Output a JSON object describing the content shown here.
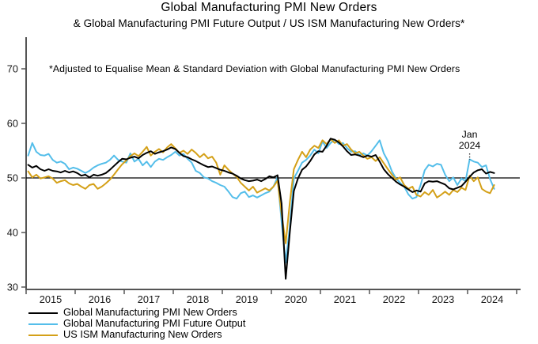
{
  "title": "Global Manufacturing PMI New Orders",
  "subtitle": "& Global Manufacturing PMI Future Output / US ISM Manufacturing New Orders*",
  "footnote": "*Adjusted to Equalise Mean & Standard Deviation with Global Manufacturing PMI New Orders",
  "annotation": {
    "line1": "Jan",
    "line2": "2024",
    "month_index": 108
  },
  "colors": {
    "axis": "#555555",
    "reference_line": "#000000",
    "text": "#1a1a1a"
  },
  "chart_data": {
    "type": "line",
    "frequency": "monthly",
    "x_start": "2015-01",
    "x_end": "2024-07",
    "x_tick_years": [
      "2015",
      "2016",
      "2017",
      "2018",
      "2019",
      "2020",
      "2021",
      "2022",
      "2023",
      "2024"
    ],
    "y_ticks": [
      30,
      40,
      50,
      60,
      70
    ],
    "ylim": [
      29.5,
      75
    ],
    "reference_line": 50,
    "grid": false,
    "legend_position": "bottom-left",
    "series": [
      {
        "name": "Global Manufacturing PMI New Orders",
        "color": "#000000",
        "values": [
          52.4,
          51.9,
          52.2,
          51.6,
          51.3,
          51.6,
          51.3,
          51.2,
          51.0,
          51.3,
          51.0,
          51.2,
          50.9,
          50.4,
          50.6,
          50.1,
          50.6,
          50.4,
          50.6,
          50.9,
          51.5,
          52.2,
          52.9,
          53.5,
          53.4,
          53.7,
          53.9,
          53.6,
          54.2,
          54.6,
          54.9,
          54.4,
          54.7,
          54.9,
          55.2,
          55.6,
          55.3,
          54.6,
          54.0,
          53.8,
          53.4,
          53.1,
          52.7,
          52.3,
          52.0,
          52.1,
          51.8,
          51.5,
          51.3,
          51.0,
          50.8,
          50.4,
          49.9,
          49.6,
          49.4,
          49.5,
          49.7,
          49.4,
          49.8,
          50.3,
          50.1,
          50.5,
          45.3,
          31.5,
          40.0,
          47.6,
          49.9,
          51.5,
          52.1,
          53.1,
          54.3,
          54.9,
          54.8,
          55.9,
          57.2,
          57.0,
          56.5,
          55.8,
          54.9,
          54.2,
          54.3,
          54.1,
          53.8,
          54.1,
          53.9,
          54.2,
          53.0,
          51.6,
          50.7,
          50.0,
          49.3,
          48.8,
          48.4,
          47.9,
          47.4,
          47.7,
          47.5,
          49.0,
          49.4,
          49.3,
          49.4,
          49.1,
          48.8,
          48.1,
          47.9,
          48.2,
          48.5,
          49.3,
          50.2,
          51.0,
          51.4,
          51.6,
          50.8,
          51.1,
          50.9
        ]
      },
      {
        "name": "Global Manufacturing PMI Future Output",
        "color": "#54BEEA",
        "values": [
          54.1,
          56.4,
          54.8,
          54.2,
          54.1,
          54.4,
          53.3,
          52.8,
          53.0,
          52.6,
          51.6,
          51.9,
          51.7,
          51.3,
          50.9,
          51.3,
          51.9,
          52.3,
          52.6,
          52.8,
          53.3,
          54.1,
          53.3,
          53.0,
          52.8,
          54.5,
          53.0,
          53.5,
          52.3,
          53.0,
          52.0,
          53.0,
          53.5,
          53.3,
          53.8,
          54.2,
          54.8,
          54.1,
          54.4,
          53.5,
          52.8,
          51.3,
          50.9,
          50.1,
          49.9,
          49.4,
          49.1,
          48.7,
          48.4,
          47.5,
          46.5,
          46.2,
          47.2,
          47.5,
          46.5,
          46.8,
          46.4,
          46.8,
          47.2,
          47.5,
          48.4,
          50.1,
          42.0,
          34.5,
          41.0,
          49.9,
          51.3,
          52.8,
          53.3,
          54.1,
          55.2,
          54.5,
          56.7,
          55.5,
          56.4,
          57.0,
          56.2,
          56.4,
          55.5,
          54.8,
          54.9,
          54.2,
          54.5,
          54.1,
          54.9,
          55.9,
          56.9,
          54.5,
          53.1,
          51.2,
          49.9,
          49.1,
          48.4,
          47.0,
          46.2,
          46.5,
          48.7,
          51.4,
          52.4,
          52.1,
          52.6,
          52.4,
          50.6,
          49.4,
          50.1,
          48.7,
          49.9,
          49.4,
          53.4,
          53.0,
          52.8,
          52.0,
          52.3,
          49.8,
          48.0
        ]
      },
      {
        "name": "US ISM Manufacturing New Orders",
        "color": "#D4A018",
        "values": [
          51.2,
          50.1,
          50.6,
          49.9,
          50.1,
          50.3,
          49.9,
          49.1,
          49.4,
          49.6,
          49.0,
          48.7,
          48.9,
          48.4,
          48.0,
          48.7,
          48.9,
          48.0,
          48.4,
          49.0,
          49.7,
          50.6,
          51.6,
          52.5,
          53.2,
          54.0,
          54.5,
          54.0,
          54.8,
          55.7,
          54.1,
          54.8,
          55.3,
          54.7,
          55.6,
          56.2,
          55.4,
          54.6,
          55.0,
          54.4,
          55.2,
          54.6,
          53.8,
          54.4,
          53.6,
          53.9,
          52.8,
          50.6,
          52.3,
          51.5,
          50.8,
          50.2,
          49.1,
          48.4,
          47.7,
          48.4,
          47.3,
          47.7,
          48.1,
          47.7,
          48.4,
          49.5,
          43.5,
          38.0,
          45.5,
          51.6,
          53.3,
          54.8,
          53.8,
          55.2,
          55.9,
          55.5,
          56.9,
          56.2,
          57.1,
          56.4,
          56.9,
          55.9,
          56.2,
          55.2,
          54.5,
          54.8,
          54.1,
          53.5,
          53.8,
          53.1,
          53.8,
          52.7,
          51.6,
          50.6,
          49.7,
          50.1,
          48.7,
          48.0,
          48.4,
          46.9,
          46.6,
          47.4,
          46.9,
          47.8,
          46.4,
          46.9,
          47.5,
          46.9,
          47.8,
          47.4,
          48.2,
          47.8,
          50.4,
          49.4,
          50.1,
          48.0,
          47.5,
          47.2,
          48.7
        ]
      }
    ]
  }
}
